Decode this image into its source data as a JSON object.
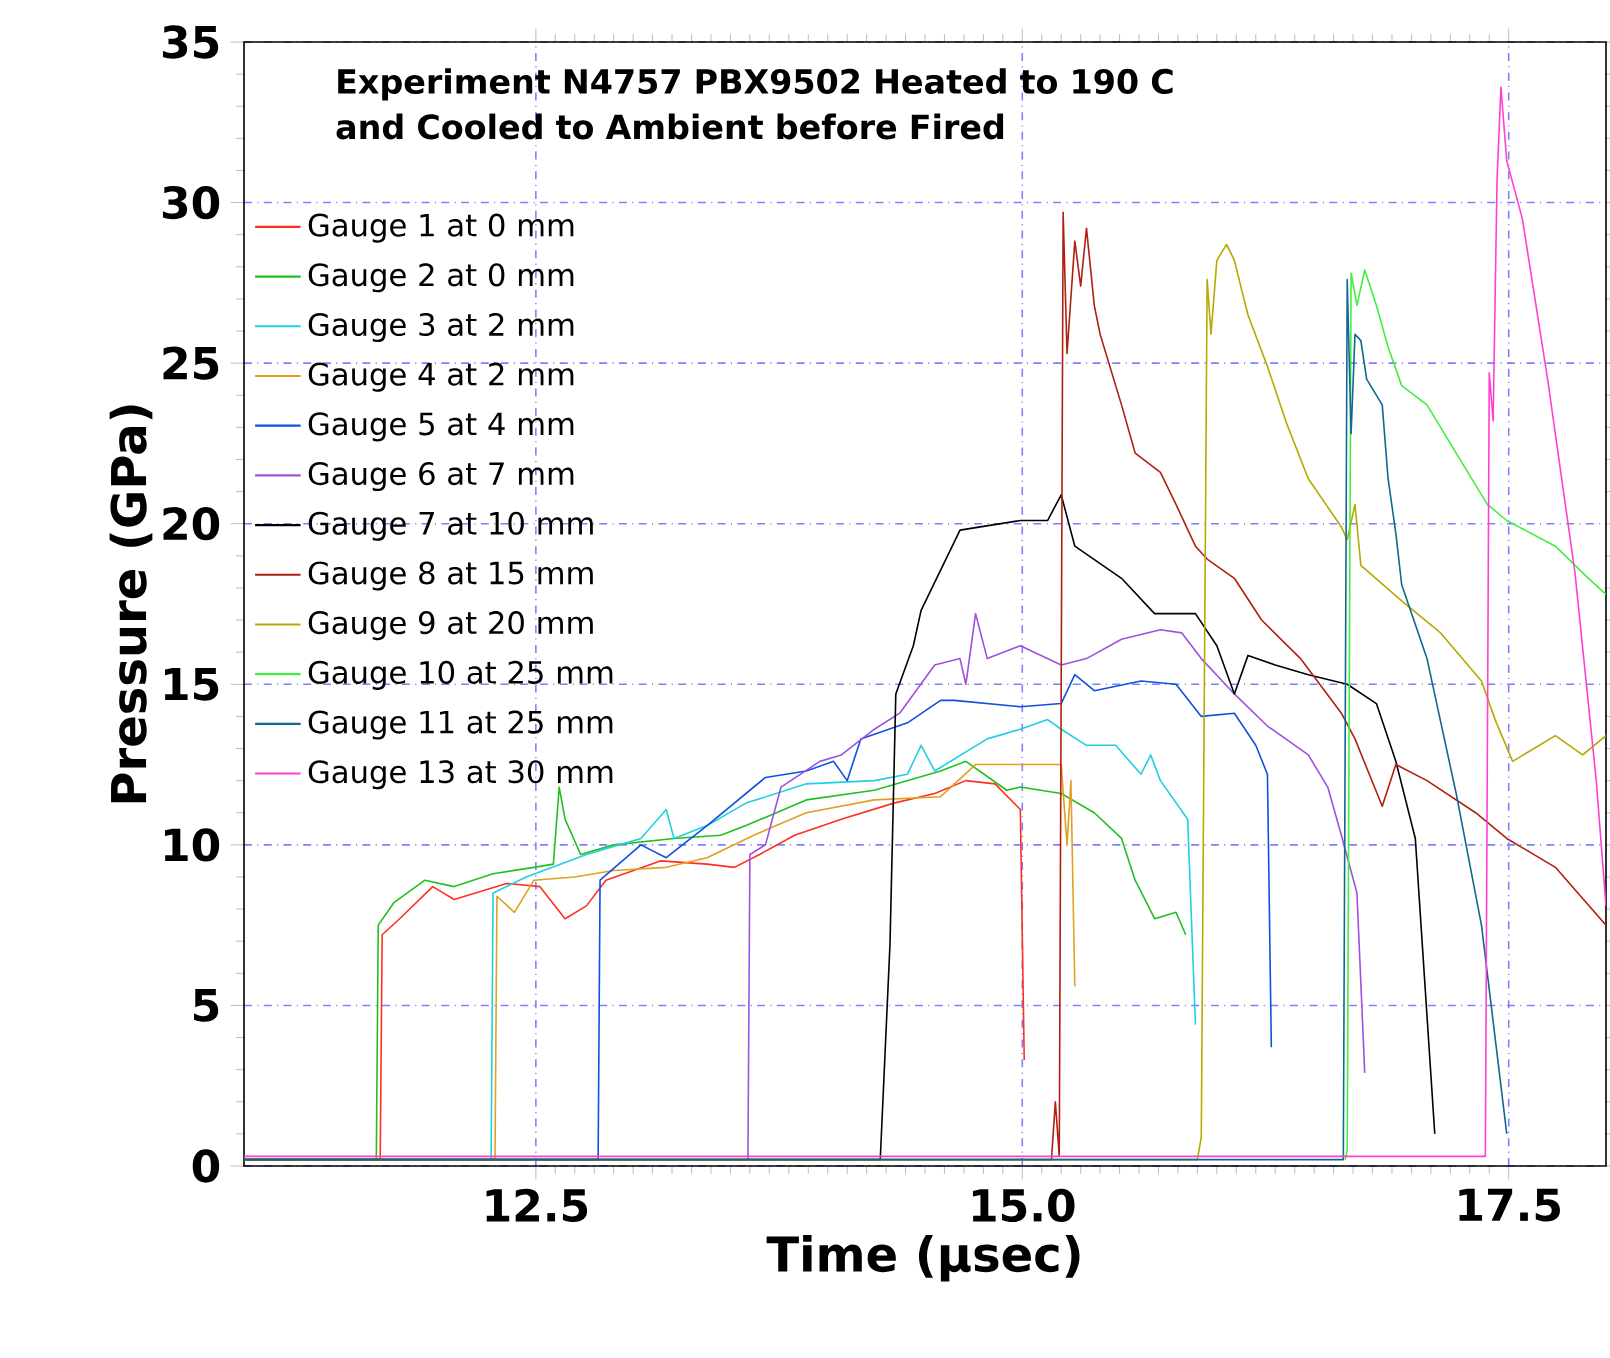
{
  "chart_data": {
    "type": "line",
    "title": "Experiment N4757 PBX9502 Heated to 190 C and Cooled to Ambient before Fired",
    "xlabel": "Time (μsec)",
    "ylabel": "Pressure (GPa)",
    "xlim": [
      11.0,
      18.0
    ],
    "ylim": [
      0,
      35
    ],
    "xticks": [
      12.5,
      {
        "value": 15.0,
        "label": "15.0"
      },
      17.5
    ],
    "yticks": [
      0,
      5,
      10,
      15,
      20,
      25,
      30,
      35
    ],
    "grid": true,
    "legend": "top left",
    "series": [
      {
        "name": "Gauge 1 at 0 mm",
        "color": "#ff3020",
        "x": [
          11.0,
          11.7,
          11.71,
          11.8,
          11.97,
          12.08,
          12.35,
          12.52,
          12.65,
          12.76,
          12.86,
          13.14,
          13.38,
          13.52,
          13.65,
          13.83,
          14.07,
          14.34,
          14.55,
          14.71,
          14.86,
          14.99,
          15.01
        ],
        "values": [
          0.2,
          0.2,
          7.2,
          7.7,
          8.7,
          8.3,
          8.8,
          8.7,
          7.7,
          8.1,
          8.9,
          9.5,
          9.4,
          9.3,
          9.7,
          10.3,
          10.8,
          11.3,
          11.6,
          12.0,
          11.9,
          11.1,
          3.3
        ]
      },
      {
        "name": "Gauge 2 at 0 mm",
        "color": "#20c020",
        "x": [
          11.0,
          11.68,
          11.69,
          11.77,
          11.93,
          12.08,
          12.28,
          12.49,
          12.59,
          12.62,
          12.65,
          12.73,
          12.9,
          13.21,
          13.45,
          13.58,
          13.89,
          14.24,
          14.58,
          14.71,
          14.92,
          14.99,
          15.2,
          15.37,
          15.51,
          15.58,
          15.68,
          15.79,
          15.84
        ],
        "values": [
          0.2,
          0.2,
          7.5,
          8.2,
          8.9,
          8.7,
          9.1,
          9.3,
          9.4,
          11.8,
          10.8,
          9.7,
          10.0,
          10.2,
          10.3,
          10.6,
          11.4,
          11.7,
          12.3,
          12.6,
          11.7,
          11.8,
          11.6,
          11.0,
          10.2,
          8.9,
          7.7,
          7.9,
          7.2
        ]
      },
      {
        "name": "Gauge 3 at 2 mm",
        "color": "#20d0e0",
        "x": [
          11.0,
          12.27,
          12.28,
          12.45,
          12.76,
          13.04,
          13.17,
          13.21,
          13.38,
          13.58,
          13.89,
          14.24,
          14.41,
          14.48,
          14.55,
          14.82,
          14.99,
          15.13,
          15.2,
          15.33,
          15.48,
          15.61,
          15.66,
          15.71,
          15.85,
          15.89
        ],
        "values": [
          0.2,
          0.2,
          8.5,
          9.0,
          9.7,
          10.2,
          11.1,
          10.2,
          10.6,
          11.3,
          11.9,
          12.0,
          12.2,
          13.1,
          12.3,
          13.3,
          13.6,
          13.9,
          13.6,
          13.1,
          13.1,
          12.2,
          12.8,
          12.0,
          10.8,
          4.4
        ]
      },
      {
        "name": "Gauge 4 at 2 mm",
        "color": "#e0a020",
        "x": [
          11.0,
          12.29,
          12.3,
          12.39,
          12.49,
          12.7,
          12.9,
          13.17,
          13.38,
          13.62,
          13.89,
          14.24,
          14.58,
          14.76,
          14.99,
          15.2,
          15.23,
          15.25,
          15.27
        ],
        "values": [
          0.2,
          0.2,
          8.4,
          7.9,
          8.9,
          9.0,
          9.2,
          9.3,
          9.6,
          10.3,
          11.0,
          11.4,
          11.5,
          12.5,
          12.5,
          12.5,
          10.0,
          12.0,
          5.6
        ]
      },
      {
        "name": "Gauge 5 at 4 mm",
        "color": "#1050e0",
        "x": [
          11.0,
          12.82,
          12.83,
          13.04,
          13.17,
          13.38,
          13.68,
          13.89,
          14.03,
          14.1,
          14.17,
          14.41,
          14.58,
          14.65,
          14.99,
          15.2,
          15.27,
          15.37,
          15.61,
          15.79,
          15.92,
          16.09,
          16.2,
          16.26,
          16.28
        ],
        "values": [
          0.2,
          0.2,
          8.9,
          10.0,
          9.6,
          10.6,
          12.1,
          12.3,
          12.6,
          12.0,
          13.3,
          13.8,
          14.5,
          14.5,
          14.3,
          14.4,
          15.3,
          14.8,
          15.1,
          15.0,
          14.0,
          14.1,
          13.1,
          12.2,
          3.7
        ]
      },
      {
        "name": "Gauge 6 at 7 mm",
        "color": "#a050e0",
        "x": [
          13.59,
          13.6,
          13.68,
          13.76,
          13.96,
          14.07,
          14.24,
          14.37,
          14.55,
          14.68,
          14.71,
          14.76,
          14.82,
          14.99,
          15.2,
          15.33,
          15.51,
          15.71,
          15.82,
          15.92,
          16.09,
          16.26,
          16.47,
          16.57,
          16.64,
          16.72,
          16.76
        ],
        "values": [
          0.2,
          9.7,
          10.0,
          11.8,
          12.6,
          12.8,
          13.6,
          14.1,
          15.6,
          15.8,
          15.0,
          17.2,
          15.8,
          16.2,
          15.6,
          15.8,
          16.4,
          16.7,
          16.6,
          15.8,
          14.7,
          13.7,
          12.8,
          11.8,
          10.3,
          8.5,
          2.9
        ]
      },
      {
        "name": "Gauge 7 at 10 mm",
        "color": "#000000",
        "x": [
          11.0,
          14.27,
          14.32,
          14.35,
          14.44,
          14.48,
          14.68,
          14.99,
          15.13,
          15.2,
          15.27,
          15.51,
          15.68,
          15.89,
          16.0,
          16.09,
          16.16,
          16.3,
          16.47,
          16.67,
          16.82,
          16.92,
          17.02,
          17.12
        ],
        "values": [
          0.2,
          0.2,
          6.9,
          14.7,
          16.2,
          17.3,
          19.8,
          20.1,
          20.1,
          20.9,
          19.3,
          18.3,
          17.2,
          17.2,
          16.2,
          14.7,
          15.9,
          15.6,
          15.3,
          15.0,
          14.4,
          12.6,
          10.2,
          1.0
        ]
      },
      {
        "name": "Gauge 8 at 15 mm",
        "color": "#b02010",
        "x": [
          11.0,
          15.15,
          15.17,
          15.19,
          15.21,
          15.23,
          15.27,
          15.3,
          15.33,
          15.37,
          15.4,
          15.51,
          15.58,
          15.71,
          15.79,
          15.89,
          15.95,
          16.09,
          16.23,
          16.43,
          16.64,
          16.71,
          16.85,
          16.92,
          17.08,
          17.33,
          17.49,
          17.74,
          18.0
        ],
        "values": [
          0.2,
          0.2,
          2.0,
          0.3,
          29.7,
          25.3,
          28.8,
          27.4,
          29.2,
          26.8,
          25.9,
          23.7,
          22.2,
          21.6,
          20.6,
          19.3,
          18.9,
          18.3,
          17.0,
          15.8,
          14.1,
          13.3,
          11.2,
          12.5,
          12.0,
          11.0,
          10.2,
          9.3,
          7.5
        ]
      },
      {
        "name": "Gauge 9 at 20 mm",
        "color": "#b8a800",
        "x": [
          11.0,
          15.9,
          15.92,
          15.95,
          15.97,
          16.0,
          16.05,
          16.09,
          16.16,
          16.26,
          16.36,
          16.47,
          16.64,
          16.67,
          16.71,
          16.74,
          16.95,
          17.15,
          17.36,
          17.43,
          17.52,
          17.74,
          17.88,
          18.0
        ],
        "values": [
          0.2,
          0.2,
          0.9,
          27.6,
          25.9,
          28.2,
          28.7,
          28.2,
          26.5,
          24.9,
          23.1,
          21.4,
          19.9,
          19.5,
          20.6,
          18.7,
          17.6,
          16.6,
          15.1,
          13.9,
          12.6,
          13.4,
          12.8,
          13.4
        ]
      },
      {
        "name": "Gauge 10 at 25 mm",
        "color": "#40f040",
        "x": [
          16.66,
          16.67,
          16.69,
          16.72,
          16.76,
          16.82,
          16.88,
          16.95,
          17.08,
          17.23,
          17.39,
          17.49,
          17.74,
          17.91,
          18.0
        ],
        "values": [
          0.2,
          0.5,
          27.8,
          26.8,
          27.9,
          26.8,
          25.5,
          24.3,
          23.7,
          22.2,
          20.6,
          20.1,
          19.3,
          18.3,
          17.8
        ]
      },
      {
        "name": "Gauge 11 at 25 mm",
        "color": "#106890",
        "x": [
          11.0,
          16.65,
          16.67,
          16.69,
          16.71,
          16.74,
          16.77,
          16.85,
          16.88,
          16.92,
          16.95,
          17.08,
          17.23,
          17.36,
          17.49
        ],
        "values": [
          0.2,
          0.2,
          27.6,
          22.8,
          25.9,
          25.7,
          24.5,
          23.7,
          21.4,
          19.7,
          18.1,
          15.8,
          11.6,
          7.5,
          1.0
        ]
      },
      {
        "name": "Gauge 13 at 30 mm",
        "color": "#ff40d0",
        "x": [
          11.0,
          17.37,
          17.38,
          17.4,
          17.42,
          17.44,
          17.46,
          17.49,
          17.57,
          17.7,
          17.84,
          17.95,
          18.0
        ],
        "values": [
          0.3,
          0.3,
          0.3,
          24.7,
          23.2,
          30.7,
          33.6,
          31.3,
          29.5,
          24.5,
          18.5,
          12.0,
          8.1
        ]
      }
    ]
  }
}
